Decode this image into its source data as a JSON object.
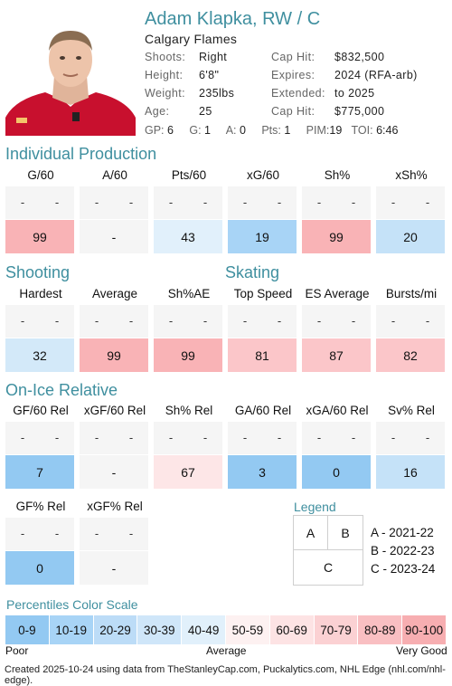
{
  "player": {
    "name": "Adam Klapka, RW / C",
    "team": "Calgary Flames",
    "info_left": [
      {
        "label": "Shoots:",
        "value": "Right"
      },
      {
        "label": "Height:",
        "value": "6'8\""
      },
      {
        "label": "Weight:",
        "value": "235lbs"
      },
      {
        "label": "Age:",
        "value": "25"
      }
    ],
    "info_right": [
      {
        "label": "Cap Hit:",
        "value": "$832,500"
      },
      {
        "label": "Expires:",
        "value": "2024 (RFA-arb)"
      },
      {
        "label": "Extended:",
        "value": "to 2025"
      },
      {
        "label": "Cap Hit:",
        "value": "$775,000"
      }
    ],
    "stats": [
      {
        "label": "GP:",
        "value": "6"
      },
      {
        "label": "G:",
        "value": "1"
      },
      {
        "label": "A:",
        "value": "0"
      },
      {
        "label": "Pts:",
        "value": "1"
      },
      {
        "label": "PIM:",
        "value": "19"
      },
      {
        "label": "TOI:",
        "value": "6:46"
      }
    ]
  },
  "sections": {
    "individual": "Individual Production",
    "shooting": "Shooting",
    "skating": "Skating",
    "onice": "On-Ice Relative"
  },
  "rows": [
    {
      "id": "individual",
      "cells": [
        {
          "head": "G/60",
          "a": "-",
          "b": "-",
          "value": "99",
          "color": "#f9b3b6"
        },
        {
          "head": "A/60",
          "a": "-",
          "b": "-",
          "value": "-",
          "color": "#f5f5f5"
        },
        {
          "head": "Pts/60",
          "a": "-",
          "b": "-",
          "value": "43",
          "color": "#e1f0fb"
        },
        {
          "head": "xG/60",
          "a": "-",
          "b": "-",
          "value": "19",
          "color": "#a8d4f6"
        },
        {
          "head": "Sh%",
          "a": "-",
          "b": "-",
          "value": "99",
          "color": "#f9b3b6"
        },
        {
          "head": "xSh%",
          "a": "-",
          "b": "-",
          "value": "20",
          "color": "#c5e2f8"
        }
      ]
    },
    {
      "id": "shoot-skate",
      "cells": [
        {
          "head": "Hardest",
          "a": "-",
          "b": "-",
          "value": "32",
          "color": "#d3e9f9"
        },
        {
          "head": "Average",
          "a": "-",
          "b": "-",
          "value": "99",
          "color": "#f9b3b6"
        },
        {
          "head": "Sh%AE",
          "a": "-",
          "b": "-",
          "value": "99",
          "color": "#f9b3b6"
        },
        {
          "head": "Top Speed",
          "a": "-",
          "b": "-",
          "value": "81",
          "color": "#fbc6c9"
        },
        {
          "head": "ES Average",
          "a": "-",
          "b": "-",
          "value": "87",
          "color": "#fbc6c9"
        },
        {
          "head": "Bursts/mi",
          "a": "-",
          "b": "-",
          "value": "82",
          "color": "#fbc6c9"
        }
      ]
    },
    {
      "id": "onice",
      "cells": [
        {
          "head": "GF/60 Rel",
          "a": "-",
          "b": "-",
          "value": "7",
          "color": "#93c9f2"
        },
        {
          "head": "xGF/60 Rel",
          "a": "-",
          "b": "-",
          "value": "-",
          "color": "#f5f5f5"
        },
        {
          "head": "Sh% Rel",
          "a": "-",
          "b": "-",
          "value": "67",
          "color": "#fde6e7"
        },
        {
          "head": "GA/60 Rel",
          "a": "-",
          "b": "-",
          "value": "3",
          "color": "#93c9f2"
        },
        {
          "head": "xGA/60 Rel",
          "a": "-",
          "b": "-",
          "value": "0",
          "color": "#93c9f2"
        },
        {
          "head": "Sv% Rel",
          "a": "-",
          "b": "-",
          "value": "16",
          "color": "#c5e2f8"
        }
      ]
    },
    {
      "id": "onice2",
      "cells": [
        {
          "head": "GF% Rel",
          "a": "-",
          "b": "-",
          "value": "0",
          "color": "#93c9f2"
        },
        {
          "head": "xGF% Rel",
          "a": "-",
          "b": "-",
          "value": "-",
          "color": "#f5f5f5"
        }
      ]
    }
  ],
  "legend": {
    "title": "Legend",
    "a": "A",
    "b": "B",
    "c": "C",
    "items": [
      "A - 2021-22",
      "B - 2022-23",
      "C - 2023-24"
    ]
  },
  "scale": {
    "title": "Percentiles Color Scale",
    "bins": [
      {
        "label": "0-9",
        "color": "#93c9f2"
      },
      {
        "label": "10-19",
        "color": "#a8d4f6"
      },
      {
        "label": "20-29",
        "color": "#bcdcf7"
      },
      {
        "label": "30-39",
        "color": "#cfe6f9"
      },
      {
        "label": "40-49",
        "color": "#e1f0fb"
      },
      {
        "label": "50-59",
        "color": "#fdf1f1"
      },
      {
        "label": "60-69",
        "color": "#fde3e4"
      },
      {
        "label": "70-79",
        "color": "#fbd1d3"
      },
      {
        "label": "80-89",
        "color": "#f9bfc2"
      },
      {
        "label": "90-100",
        "color": "#f7aeb1"
      }
    ],
    "poor": "Poor",
    "average": "Average",
    "very_good": "Very Good"
  },
  "footer": "Created 2025-10-24 using data from TheStanleyCap.com, Puckalytics.com, NHL Edge (nhl.com/nhl-edge)."
}
